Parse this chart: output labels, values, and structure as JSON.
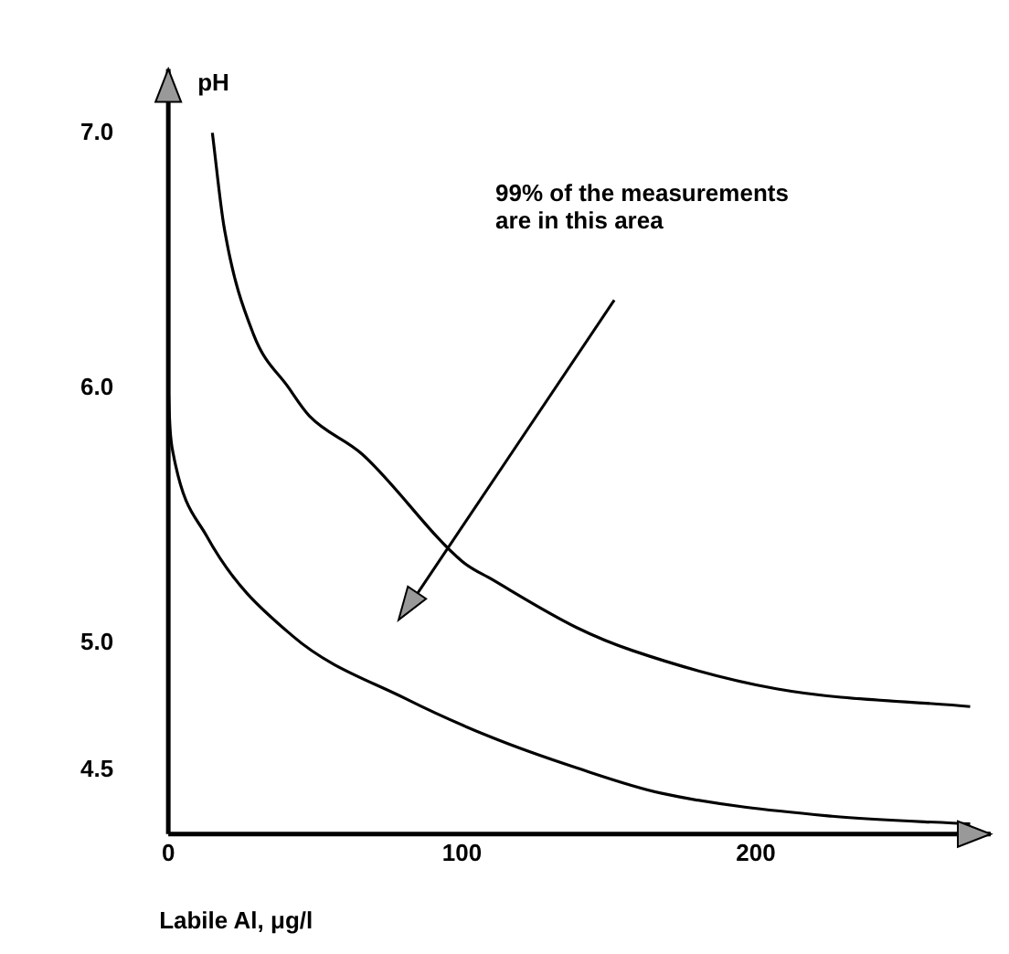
{
  "chart_data": {
    "type": "line",
    "xlabel": "Labile Al, μg/l",
    "ylabel": "pH",
    "xlim": [
      0,
      280
    ],
    "ylim": [
      4.25,
      7.25
    ],
    "xticks": [
      0,
      100,
      200
    ],
    "yticks": [
      {
        "value": 4.5,
        "label": "4.5"
      },
      {
        "value": 5,
        "label": "5.0"
      },
      {
        "value": 6,
        "label": "6.0"
      },
      {
        "value": 7,
        "label": "7.0"
      }
    ],
    "marker": "none",
    "line_style": "solid",
    "series": [
      {
        "color": "#000000",
        "x": [
          15,
          19,
          29,
          41,
          48,
          66,
          100,
          110,
          139,
          158,
          207,
          273
        ],
        "values": [
          7.0,
          6.63,
          6.21,
          6.0,
          5.89,
          5.74,
          5.32,
          5.25,
          5.06,
          4.97,
          4.82,
          4.75
        ]
      },
      {
        "color": "#000000",
        "x": [
          0,
          0.6,
          1.7,
          13,
          42,
          81,
          110,
          139,
          168,
          226,
          273
        ],
        "values": [
          6.0,
          5.84,
          5.74,
          5.42,
          5.03,
          4.78,
          4.63,
          4.51,
          4.41,
          4.32,
          4.29
        ]
      }
    ],
    "annotations": [
      "99% of the measurements\nare in this area"
    ]
  }
}
